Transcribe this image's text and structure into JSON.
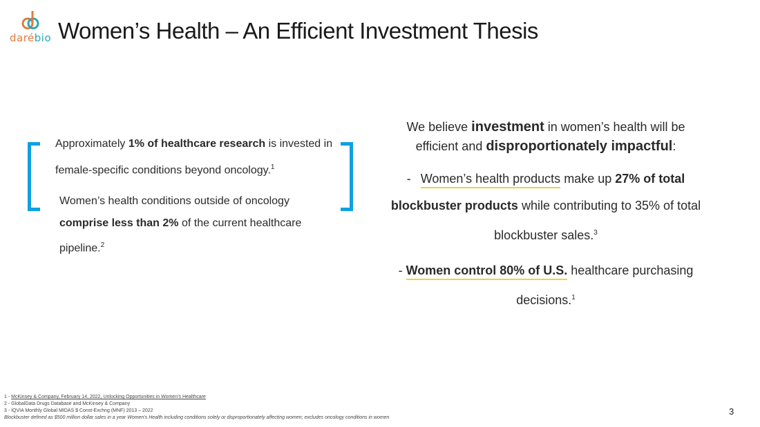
{
  "logo": {
    "text_dare": "daré",
    "text_bio": "bio"
  },
  "title": "Women’s Health – An Efficient Investment Thesis",
  "left": {
    "para1": {
      "pre": "Approximately ",
      "bold": "1% of healthcare research",
      "post": " is invested in female-specific conditions beyond oncology.",
      "sup": "1"
    },
    "para2": {
      "pre": "Women’s health conditions outside of oncology ",
      "bold": "comprise less than 2%",
      "post": " of the current healthcare pipeline.",
      "sup": "2"
    }
  },
  "right": {
    "intro": {
      "t1": "We believe ",
      "b1": "investment",
      "t2": " in women’s health will be efficient and ",
      "b2": "disproportionately impactful",
      "t3": ":"
    },
    "bullet1": {
      "dash": "-",
      "underlined": "Women’s health products",
      "t1": " make up ",
      "b1": "27% of total blockbuster products",
      "t2": " while contributing to 35% of total blockbuster sales.",
      "sup": "3"
    },
    "bullet2": {
      "dash": "- ",
      "underlined": "Women control 80% of U.S.",
      "t1": " healthcare purchasing decisions.",
      "sup": "1"
    }
  },
  "footnotes": {
    "f1_pre": "1 - ",
    "f1_link": "McKinsey & Company, February 14, 2022, Unlocking Opportunities in Women’s Healthcare",
    "f2": "2 - GlobalData Drugs Database and McKinsey & Company",
    "f3": "3 - IQVIA Monthly Global MIDAS $ Const-Exchng (MNF) 2013 – 2022",
    "f4": "Blockbuster defined as $500 million dollar sales in a year Women’s Health including conditions solely or disproportionately affecting women; excludes oncology conditions in women"
  },
  "page_number": "3",
  "colors": {
    "bracket": "#10a0e0",
    "underline": "#f2d235",
    "logo_orange": "#e07a3c",
    "logo_teal": "#2aa6b8"
  }
}
